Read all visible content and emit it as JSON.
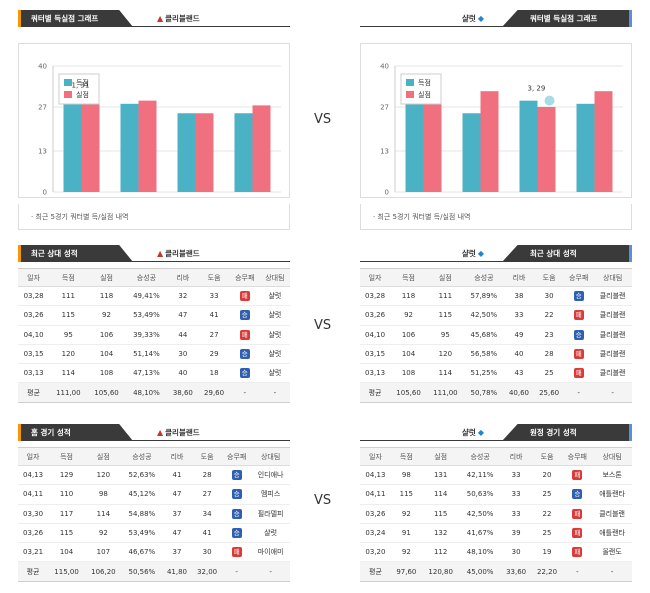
{
  "vs_label": "VS",
  "sections": {
    "quarter": {
      "left_title": "쿼터별 득실점 그래프",
      "right_title": "쿼터별 득실점 그래프",
      "note": "최근 5경기 쿼터별 득/실점 내역"
    },
    "recent": {
      "left_title": "최근 상대 성적",
      "right_title": "최근 상대 성적"
    },
    "venue": {
      "left_title": "홈 경기 성적",
      "right_title": "원정 경기 성적"
    }
  },
  "teams": {
    "left": "클리블랜드",
    "right": "샬럿"
  },
  "icons": {
    "left_logo": "cavaliers-logo-icon",
    "right_logo": "hornets-logo-icon"
  },
  "colors": {
    "scored": "#4bb2c5",
    "conceded": "#f07080",
    "win_badge": "#2f5fb0",
    "loss_badge": "#d93a3a",
    "left_accent": "#f39800",
    "right_accent": "#5b8fd8"
  },
  "table_headers": [
    "일자",
    "득점",
    "실점",
    "승성공",
    "리바",
    "도움",
    "승무패",
    "상대팀"
  ],
  "chart_data": [
    {
      "type": "bar",
      "categories": [
        "1Q",
        "2Q",
        "3Q",
        "4Q"
      ],
      "series": [
        {
          "name": "득점",
          "values": [
            30,
            28,
            25,
            25
          ]
        },
        {
          "name": "실점",
          "values": [
            31,
            29,
            25,
            27.5
          ]
        }
      ],
      "yticks": [
        "0",
        "13",
        "27",
        "40"
      ],
      "ylim": [
        0,
        40
      ],
      "tooltip": "1, 31",
      "legend": "top-left"
    },
    {
      "type": "bar",
      "categories": [
        "1Q",
        "2Q",
        "3Q",
        "4Q"
      ],
      "series": [
        {
          "name": "득점",
          "values": [
            29,
            25,
            29,
            28
          ]
        },
        {
          "name": "실점",
          "values": [
            31,
            32,
            27,
            32
          ]
        }
      ],
      "yticks": [
        "0",
        "13",
        "27",
        "40"
      ],
      "ylim": [
        0,
        40
      ],
      "tooltip": "3, 29",
      "legend": "top-left"
    }
  ],
  "tables": {
    "recent_left": {
      "rows": [
        [
          "03,28",
          "111",
          "118",
          "49,41%",
          "32",
          "33",
          "패",
          "샬럿"
        ],
        [
          "03,26",
          "115",
          "92",
          "53,49%",
          "47",
          "41",
          "승",
          "샬럿"
        ],
        [
          "04,10",
          "95",
          "106",
          "39,33%",
          "44",
          "27",
          "패",
          "샬럿"
        ],
        [
          "03,15",
          "120",
          "104",
          "51,14%",
          "30",
          "29",
          "승",
          "샬럿"
        ],
        [
          "03,13",
          "114",
          "108",
          "47,13%",
          "40",
          "18",
          "승",
          "샬럿"
        ]
      ],
      "avg": [
        "평균",
        "111,00",
        "105,60",
        "48,10%",
        "38,60",
        "29,60",
        "-",
        "-"
      ]
    },
    "recent_right": {
      "rows": [
        [
          "03,28",
          "118",
          "111",
          "57,89%",
          "38",
          "30",
          "승",
          "클리블랜"
        ],
        [
          "03,26",
          "92",
          "115",
          "42,50%",
          "33",
          "22",
          "패",
          "클리블랜"
        ],
        [
          "04,10",
          "106",
          "95",
          "45,68%",
          "49",
          "23",
          "승",
          "클리블랜"
        ],
        [
          "03,15",
          "104",
          "120",
          "56,58%",
          "40",
          "28",
          "패",
          "클리블랜"
        ],
        [
          "03,13",
          "108",
          "114",
          "51,25%",
          "43",
          "25",
          "패",
          "클리블랜"
        ]
      ],
      "avg": [
        "평균",
        "105,60",
        "111,00",
        "50,78%",
        "40,60",
        "25,60",
        "-",
        "-"
      ]
    },
    "home_left": {
      "rows": [
        [
          "04,13",
          "129",
          "120",
          "52,63%",
          "41",
          "28",
          "승",
          "인디애나"
        ],
        [
          "04,11",
          "110",
          "98",
          "45,12%",
          "47",
          "27",
          "승",
          "멤피스"
        ],
        [
          "03,30",
          "117",
          "114",
          "54,88%",
          "37",
          "34",
          "승",
          "필라델피"
        ],
        [
          "03,26",
          "115",
          "92",
          "53,49%",
          "47",
          "41",
          "승",
          "샬럿"
        ],
        [
          "03,21",
          "104",
          "107",
          "46,67%",
          "37",
          "30",
          "패",
          "마이애미"
        ]
      ],
      "avg": [
        "평균",
        "115,00",
        "106,20",
        "50,56%",
        "41,80",
        "32,00",
        "-",
        "-"
      ]
    },
    "away_right": {
      "rows": [
        [
          "04,13",
          "98",
          "131",
          "42,11%",
          "33",
          "20",
          "패",
          "보스톤"
        ],
        [
          "04,11",
          "115",
          "114",
          "50,63%",
          "33",
          "25",
          "승",
          "애틀랜타"
        ],
        [
          "03,26",
          "92",
          "115",
          "42,50%",
          "33",
          "22",
          "패",
          "클리블랜"
        ],
        [
          "03,24",
          "91",
          "132",
          "41,67%",
          "39",
          "25",
          "패",
          "애틀랜타"
        ],
        [
          "03,20",
          "92",
          "112",
          "48,10%",
          "30",
          "19",
          "패",
          "올랜도"
        ]
      ],
      "avg": [
        "평균",
        "97,60",
        "120,80",
        "45,00%",
        "33,60",
        "22,20",
        "-",
        "-"
      ]
    }
  }
}
